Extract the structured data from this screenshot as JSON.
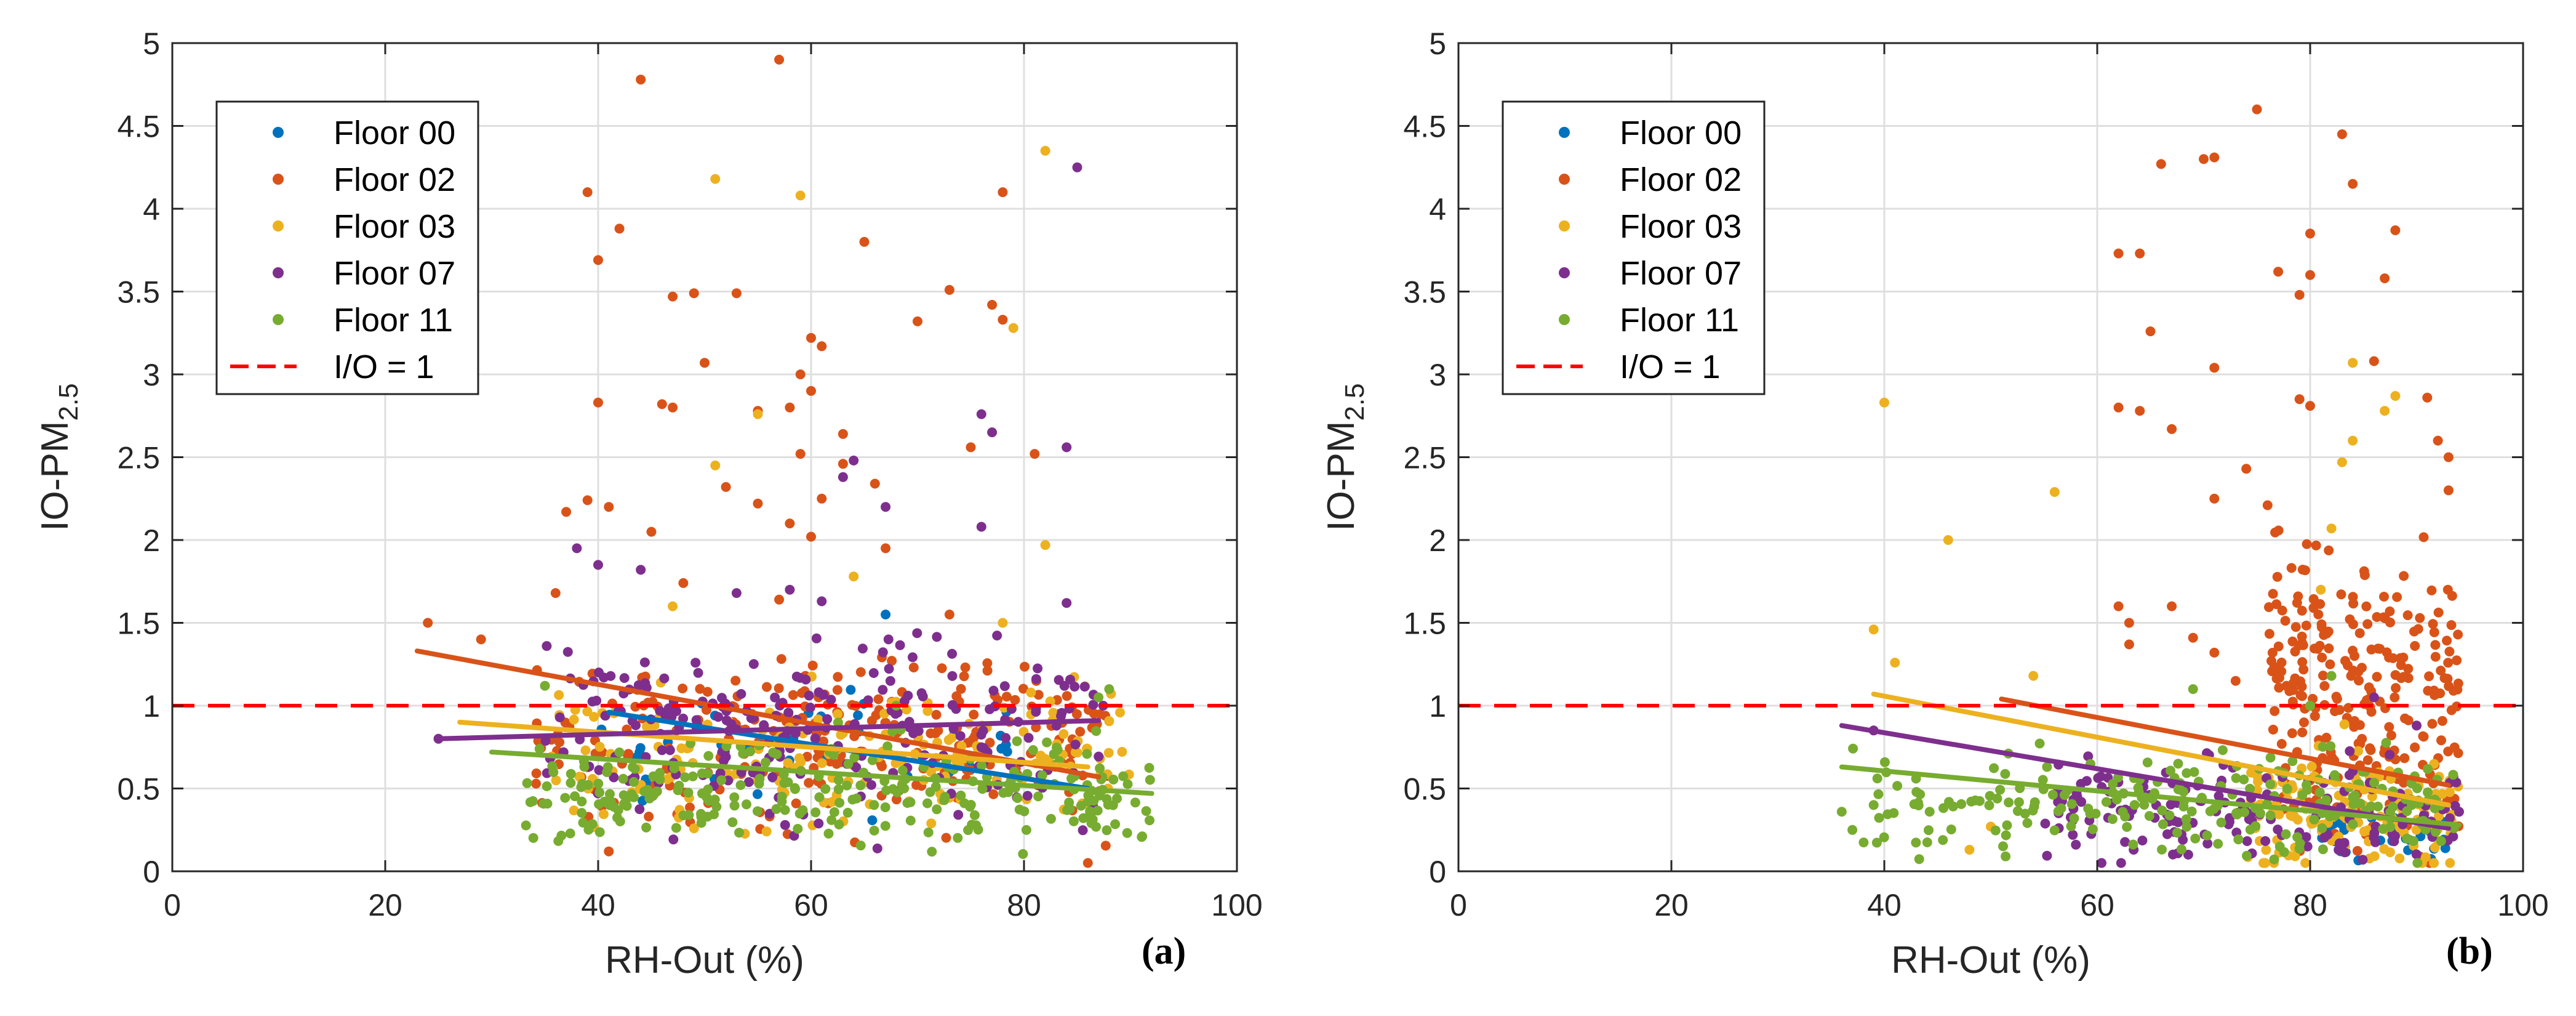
{
  "colors": {
    "floor_00": "#0072BD",
    "floor_02": "#D95319",
    "floor_03": "#EDB120",
    "floor_07": "#7E2F8E",
    "floor_11": "#77AC30",
    "reference": "#FF0000",
    "grid": "#DFDFDF",
    "axis": "#262626"
  },
  "chart_data": [
    {
      "type": "scatter",
      "panel": "(a)",
      "xlabel": "RH-Out  (%)",
      "ylabel_main": "IO-PM",
      "ylabel_sub": "2.5",
      "xlim": [
        0,
        100
      ],
      "ylim": [
        0,
        5
      ],
      "x_ticks": [
        "0",
        "20",
        "40",
        "60",
        "80",
        "100"
      ],
      "y_ticks": [
        "0",
        "0.5",
        "1",
        "1.5",
        "2",
        "2.5",
        "3",
        "3.5",
        "4",
        "4.5",
        "5"
      ],
      "grid": true,
      "legend_position": "top-left",
      "legend": [
        "Floor 00",
        "Floor 02",
        "Floor 03",
        "Floor 07",
        "Floor 11",
        "I/O = 1"
      ],
      "reference_line": {
        "name": "I/O = 1",
        "y": 1,
        "style": "dashed"
      },
      "series": [
        {
          "name": "Floor 00",
          "color_key": "floor_00",
          "cloud": {
            "x_range": [
              40,
              80
            ],
            "y_center": 0.75,
            "y_spread": 0.25,
            "n": 40
          },
          "outliers": [
            [
              67,
              1.55
            ],
            [
              52,
              1.0
            ],
            [
              73,
              0.6
            ],
            [
              61,
              0.7
            ]
          ],
          "fit": [
            [
              41,
              0.96
            ],
            [
              86,
              0.5
            ]
          ]
        },
        {
          "name": "Floor 02",
          "color_key": "floor_02",
          "cloud": {
            "x_range": [
              34,
              88
            ],
            "y_center": 0.8,
            "y_spread": 0.45,
            "n": 240
          },
          "outliers": [
            [
              24,
              1.5
            ],
            [
              29,
              1.4
            ],
            [
              44,
              4.78
            ],
            [
              57,
              4.9
            ],
            [
              39,
              4.1
            ],
            [
              42,
              3.88
            ],
            [
              40,
              3.69
            ],
            [
              47,
              3.47
            ],
            [
              49,
              3.49
            ],
            [
              53,
              3.49
            ],
            [
              65,
              3.8
            ],
            [
              70,
              3.32
            ],
            [
              73,
              3.51
            ],
            [
              78,
              4.1
            ],
            [
              77,
              3.42
            ],
            [
              78,
              3.33
            ],
            [
              60,
              3.22
            ],
            [
              61,
              3.17
            ],
            [
              59,
              3.0
            ],
            [
              60,
              2.9
            ],
            [
              50,
              3.07
            ],
            [
              40,
              2.83
            ],
            [
              46,
              2.82
            ],
            [
              47,
              2.8
            ],
            [
              58,
              2.8
            ],
            [
              55,
              2.78
            ],
            [
              63,
              2.64
            ],
            [
              59,
              2.52
            ],
            [
              63,
              2.46
            ],
            [
              75,
              2.56
            ],
            [
              81,
              2.52
            ],
            [
              39,
              2.24
            ],
            [
              37,
              2.17
            ],
            [
              41,
              2.2
            ],
            [
              45,
              2.05
            ],
            [
              52,
              2.32
            ],
            [
              55,
              2.22
            ],
            [
              58,
              2.1
            ],
            [
              60,
              2.02
            ],
            [
              61,
              2.25
            ],
            [
              66,
              2.34
            ],
            [
              67,
              1.95
            ],
            [
              36,
              1.68
            ],
            [
              48,
              1.74
            ],
            [
              57,
              1.64
            ],
            [
              73,
              1.55
            ],
            [
              86,
              0.05
            ],
            [
              41,
              0.12
            ]
          ],
          "fit": [
            [
              23,
              1.33
            ],
            [
              87,
              0.57
            ]
          ]
        },
        {
          "name": "Floor 03",
          "color_key": "floor_03",
          "cloud": {
            "x_range": [
              35,
              90
            ],
            "y_center": 0.7,
            "y_spread": 0.35,
            "n": 180
          },
          "outliers": [
            [
              51,
              4.18
            ],
            [
              59,
              4.08
            ],
            [
              82,
              4.35
            ],
            [
              79,
              3.28
            ],
            [
              55,
              2.76
            ],
            [
              51,
              2.45
            ],
            [
              82,
              1.97
            ],
            [
              64,
              1.78
            ],
            [
              78,
              1.5
            ],
            [
              47,
              1.6
            ]
          ],
          "fit": [
            [
              27,
              0.9
            ],
            [
              86,
              0.63
            ]
          ]
        },
        {
          "name": "Floor 07",
          "color_key": "floor_07",
          "cloud": {
            "x_range": [
              35,
              88
            ],
            "y_center": 0.85,
            "y_spread": 0.45,
            "n": 230
          },
          "outliers": [
            [
              85,
              4.25
            ],
            [
              76,
              2.76
            ],
            [
              77,
              2.65
            ],
            [
              84,
              2.56
            ],
            [
              64,
              2.48
            ],
            [
              63,
              2.38
            ],
            [
              67,
              2.2
            ],
            [
              76,
              2.08
            ],
            [
              38,
              1.95
            ],
            [
              40,
              1.85
            ],
            [
              44,
              1.82
            ],
            [
              53,
              1.68
            ],
            [
              58,
              1.7
            ],
            [
              61,
              1.63
            ],
            [
              84,
              1.62
            ],
            [
              25,
              0.8
            ]
          ],
          "fit": [
            [
              25,
              0.8
            ],
            [
              87,
              0.91
            ]
          ]
        },
        {
          "name": "Floor 11",
          "color_key": "floor_11",
          "cloud": {
            "x_range": [
              33,
              92
            ],
            "y_center": 0.48,
            "y_spread": 0.26,
            "n": 260
          },
          "outliers": [
            [
              88,
              1.1
            ],
            [
              87,
              1.05
            ],
            [
              35,
              1.12
            ],
            [
              68,
              1.0
            ]
          ],
          "fit": [
            [
              30,
              0.72
            ],
            [
              92,
              0.47
            ]
          ]
        }
      ]
    },
    {
      "type": "scatter",
      "panel": "(b)",
      "xlabel": "RH-Out  (%)",
      "ylabel_main": "IO-PM",
      "ylabel_sub": "2.5",
      "xlim": [
        0,
        100
      ],
      "ylim": [
        0,
        5
      ],
      "x_ticks": [
        "0",
        "20",
        "40",
        "60",
        "80",
        "100"
      ],
      "y_ticks": [
        "0",
        "0.5",
        "1",
        "1.5",
        "2",
        "2.5",
        "3",
        "3.5",
        "4",
        "4.5",
        "5"
      ],
      "grid": true,
      "legend_position": "top-left",
      "legend": [
        "Floor 00",
        "Floor 02",
        "Floor 03",
        "Floor 07",
        "Floor 11",
        "I/O = 1"
      ],
      "reference_line": {
        "name": "I/O = 1",
        "y": 1,
        "style": "dashed"
      },
      "series": [
        {
          "name": "Floor 00",
          "color_key": "floor_00",
          "cloud": {
            "x_range": [
              80,
              93
            ],
            "y_center": 0.25,
            "y_spread": 0.15,
            "n": 30
          },
          "outliers": [],
          "fit": []
        },
        {
          "name": "Floor 02",
          "color_key": "floor_02",
          "cloud": {
            "x_range": [
              76,
              94
            ],
            "y_center": 1.05,
            "y_spread": 0.75,
            "n": 260
          },
          "outliers": [
            [
              75,
              4.6
            ],
            [
              83,
              4.45
            ],
            [
              84,
              4.15
            ],
            [
              70,
              4.3
            ],
            [
              71,
              4.31
            ],
            [
              66,
              4.27
            ],
            [
              88,
              3.87
            ],
            [
              80,
              3.85
            ],
            [
              80,
              3.6
            ],
            [
              79,
              3.48
            ],
            [
              77,
              3.62
            ],
            [
              62,
              3.73
            ],
            [
              64,
              3.73
            ],
            [
              65,
              3.26
            ],
            [
              71,
              3.04
            ],
            [
              87,
              3.58
            ],
            [
              86,
              3.08
            ],
            [
              91,
              2.86
            ],
            [
              62,
              2.8
            ],
            [
              64,
              2.78
            ],
            [
              67,
              2.67
            ],
            [
              79,
              2.85
            ],
            [
              80,
              2.81
            ],
            [
              74,
              2.43
            ],
            [
              71,
              2.25
            ],
            [
              76,
              2.21
            ],
            [
              62,
              1.6
            ],
            [
              63,
              1.5
            ],
            [
              63,
              1.37
            ],
            [
              67,
              1.6
            ],
            [
              69,
              1.41
            ],
            [
              71,
              1.32
            ],
            [
              73,
              1.15
            ],
            [
              92,
              2.6
            ],
            [
              93,
              2.5
            ],
            [
              93,
              2.3
            ]
          ],
          "fit": [
            [
              51,
              1.04
            ],
            [
              93,
              0.52
            ]
          ]
        },
        {
          "name": "Floor 03",
          "color_key": "floor_03",
          "cloud": {
            "x_range": [
              74,
              94
            ],
            "y_center": 0.35,
            "y_spread": 0.3,
            "n": 150
          },
          "outliers": [
            [
              40,
              2.83
            ],
            [
              56,
              2.29
            ],
            [
              46,
              2.0
            ],
            [
              39,
              1.46
            ],
            [
              41,
              1.26
            ],
            [
              54,
              1.18
            ],
            [
              84,
              3.07
            ],
            [
              88,
              2.87
            ],
            [
              87,
              2.78
            ],
            [
              84,
              2.6
            ],
            [
              83,
              2.47
            ],
            [
              82,
              2.07
            ],
            [
              81,
              1.7
            ],
            [
              50,
              0.27
            ],
            [
              48,
              0.13
            ]
          ],
          "fit": [
            [
              39,
              1.07
            ],
            [
              93,
              0.4
            ]
          ]
        },
        {
          "name": "Floor 07",
          "color_key": "floor_07",
          "cloud": {
            "x_range": [
              55,
              94
            ],
            "y_center": 0.35,
            "y_spread": 0.25,
            "n": 160
          },
          "outliers": [
            [
              86,
              1.05
            ],
            [
              90,
              0.88
            ],
            [
              39,
              0.85
            ]
          ],
          "fit": [
            [
              36,
              0.88
            ],
            [
              93,
              0.26
            ]
          ]
        },
        {
          "name": "Floor 11",
          "color_key": "floor_11",
          "cloud": {
            "x_range": [
              37,
              94
            ],
            "y_center": 0.4,
            "y_spread": 0.25,
            "n": 230
          },
          "outliers": [
            [
              36,
              0.36
            ],
            [
              37,
              0.25
            ],
            [
              39,
              0.4
            ],
            [
              82,
              1.18
            ],
            [
              69,
              1.1
            ],
            [
              80,
              1.0
            ]
          ],
          "fit": [
            [
              36,
              0.63
            ],
            [
              94,
              0.28
            ]
          ]
        }
      ]
    }
  ]
}
